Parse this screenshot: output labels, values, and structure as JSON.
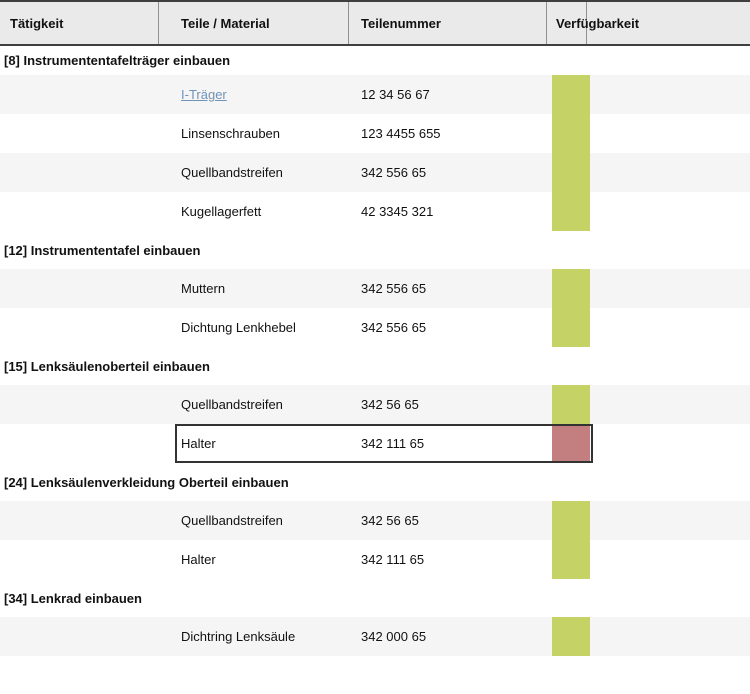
{
  "header": {
    "columns": [
      {
        "label": "Tätigkeit"
      },
      {
        "label": "Teile / Material"
      },
      {
        "label": "Teilenummer"
      },
      {
        "label": "Verfügbarkeit"
      }
    ]
  },
  "colors": {
    "available": "#c4d266",
    "unavailable": "#c37f7f",
    "row_alt": "#f5f5f5",
    "header_bg": "#eaeaea",
    "border_dark": "#3f3f3f",
    "link": "#7193b7"
  },
  "groups": [
    {
      "title": "[8] Instrumententafelträger einbauen",
      "rows": [
        {
          "part": "I-Träger",
          "number": "12 34 56 67",
          "availability": "available",
          "is_link": true
        },
        {
          "part": "Linsenschrauben",
          "number": "123 4455 655",
          "availability": "available"
        },
        {
          "part": "Quellbandstreifen",
          "number": "342 556 65",
          "availability": "available"
        },
        {
          "part": "Kugellagerfett",
          "number": "42 3345 321",
          "availability": "available"
        }
      ]
    },
    {
      "title": "[12] Instrumententafel einbauen",
      "rows": [
        {
          "part": "Muttern",
          "number": "342 556 65",
          "availability": "available"
        },
        {
          "part": "Dichtung Lenkhebel",
          "number": "342 556 65",
          "availability": "available"
        }
      ]
    },
    {
      "title": "[15] Lenksäulenoberteil einbauen",
      "rows": [
        {
          "part": "Quellbandstreifen",
          "number": "342 56 65",
          "availability": "available"
        },
        {
          "part": "Halter",
          "number": "342 111 65",
          "availability": "unavailable",
          "selected": true
        }
      ]
    },
    {
      "title": "[24] Lenksäulenverkleidung Oberteil einbauen",
      "rows": [
        {
          "part": "Quellbandstreifen",
          "number": "342 56 65",
          "availability": "available"
        },
        {
          "part": "Halter",
          "number": "342 111 65",
          "availability": "available"
        }
      ]
    },
    {
      "title": "[34] Lenkrad einbauen",
      "rows": [
        {
          "part": "Dichtring Lenksäule",
          "number": "342 000 65",
          "availability": "available"
        }
      ]
    }
  ]
}
